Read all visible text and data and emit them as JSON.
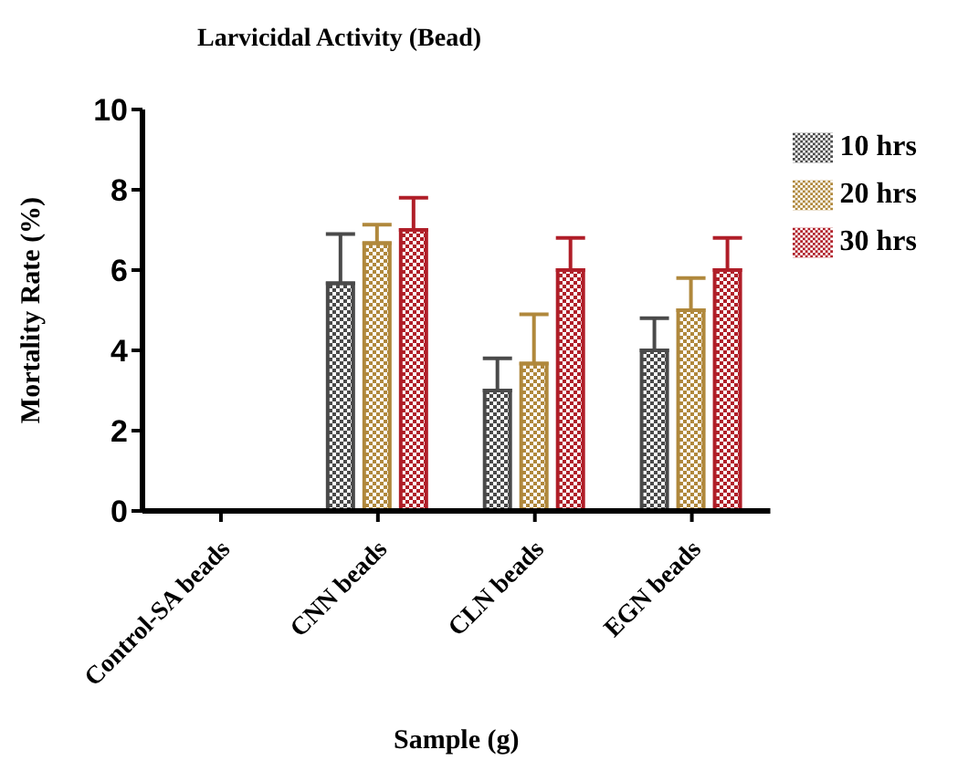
{
  "chart_data": {
    "type": "bar",
    "title": "Larvicidal Activity (Bead)",
    "xlabel": "Sample (g)",
    "ylabel": "Mortality Rate (%)",
    "categories": [
      "Control-SA beads",
      "CNN beads",
      "CLN beads",
      "EGN beads"
    ],
    "series": [
      {
        "name": "10 hrs",
        "color": "#4a4a4a",
        "values": [
          0,
          5.67,
          3,
          4
        ],
        "errors": [
          null,
          [
            5.67,
            6.9
          ],
          [
            3,
            3.8
          ],
          [
            4,
            4.8
          ]
        ]
      },
      {
        "name": "20 hrs",
        "color": "#b0883c",
        "values": [
          0,
          6.67,
          3.67,
          5
        ],
        "errors": [
          null,
          [
            6.67,
            7.13
          ],
          [
            3.67,
            4.9
          ],
          [
            5,
            5.8
          ]
        ]
      },
      {
        "name": "30 hrs",
        "color": "#b01e28",
        "values": [
          0,
          7,
          6,
          6
        ],
        "errors": [
          null,
          [
            7,
            7.8
          ],
          [
            6,
            6.8
          ],
          [
            6,
            6.8
          ]
        ]
      }
    ],
    "ylim": [
      0,
      10
    ],
    "yticks": [
      0,
      2,
      4,
      6,
      8,
      10
    ],
    "grid": false,
    "legend": "right"
  }
}
